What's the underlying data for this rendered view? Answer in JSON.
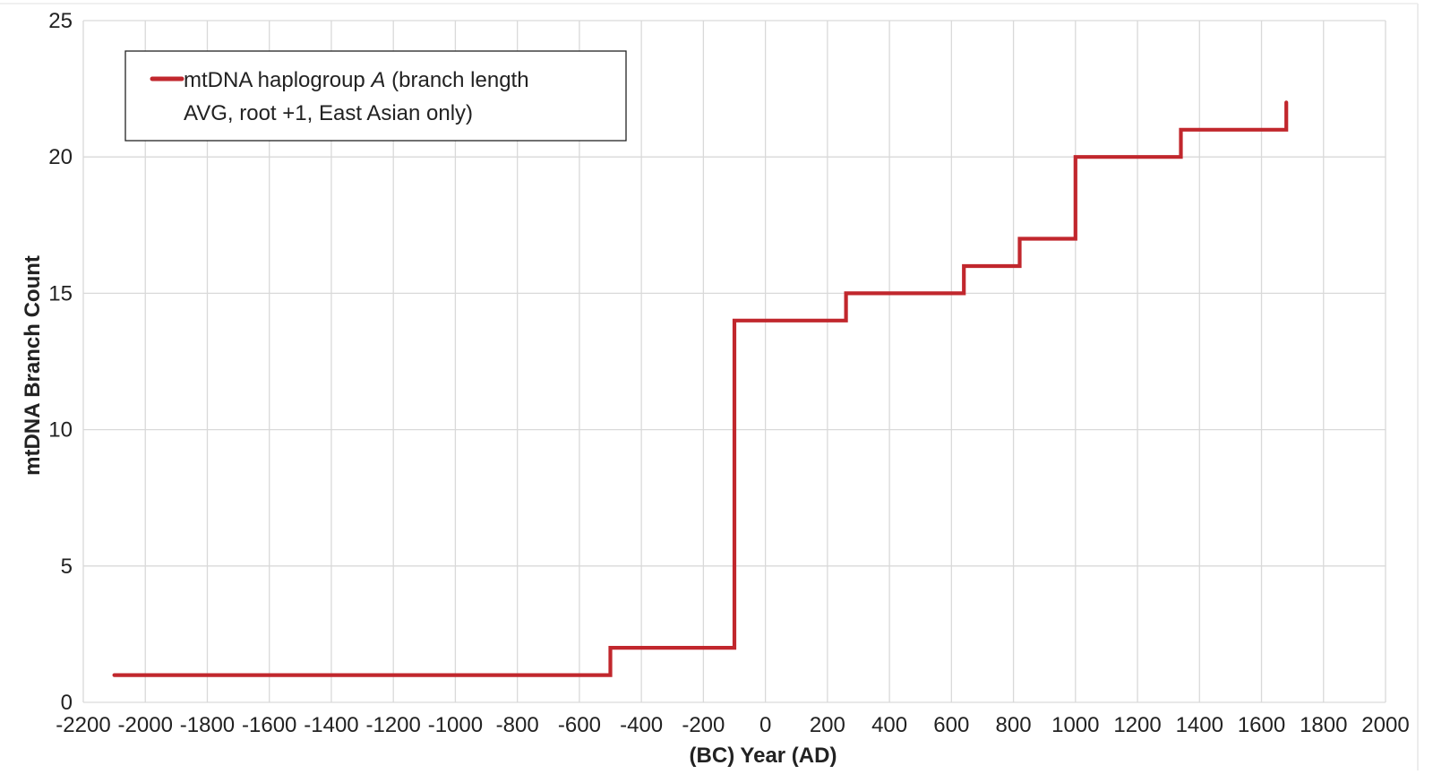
{
  "chart_data": {
    "type": "line",
    "step": true,
    "xlabel": "(BC) Year (AD)",
    "ylabel": "mtDNA Branch Count",
    "xlim": [
      -2200,
      2000
    ],
    "ylim": [
      0,
      25
    ],
    "xticks": [
      -2200,
      -2000,
      -1800,
      -1600,
      -1400,
      -1200,
      -1000,
      -800,
      -600,
      -400,
      -200,
      0,
      200,
      400,
      600,
      800,
      1000,
      1200,
      1400,
      1600,
      1800,
      2000
    ],
    "yticks": [
      0,
      5,
      10,
      15,
      20,
      25
    ],
    "grid": true,
    "legend_position": "top-left",
    "series": [
      {
        "name_parts": [
          "mtDNA haplogroup ",
          "A",
          " (branch length",
          "AVG, root +1, East Asian only)"
        ],
        "color": "#c1272d",
        "x": [
          -2100,
          -500,
          -100,
          260,
          640,
          820,
          1000,
          1340,
          1680,
          1680
        ],
        "y": [
          1,
          2,
          14,
          15,
          16,
          17,
          20,
          21,
          21,
          22
        ]
      }
    ]
  }
}
